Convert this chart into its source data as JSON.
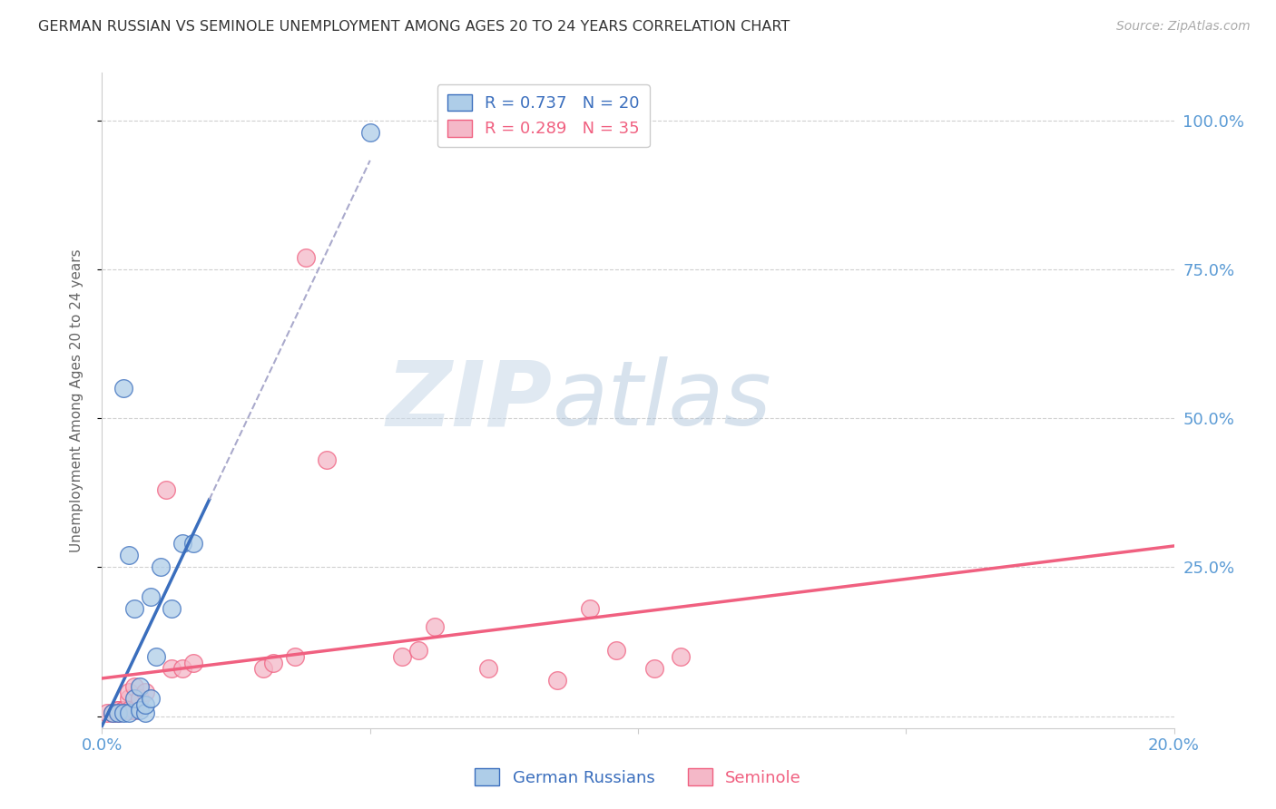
{
  "title": "GERMAN RUSSIAN VS SEMINOLE UNEMPLOYMENT AMONG AGES 20 TO 24 YEARS CORRELATION CHART",
  "source": "Source: ZipAtlas.com",
  "ylabel": "Unemployment Among Ages 20 to 24 years",
  "xlim": [
    0.0,
    0.2
  ],
  "ylim": [
    -0.02,
    1.08
  ],
  "x_ticks": [
    0.0,
    0.05,
    0.1,
    0.15,
    0.2
  ],
  "x_tick_labels": [
    "0.0%",
    "",
    "",
    "",
    "20.0%"
  ],
  "y_ticks": [
    0.0,
    0.25,
    0.5,
    0.75,
    1.0
  ],
  "y_tick_labels_right": [
    "",
    "25.0%",
    "50.0%",
    "75.0%",
    "100.0%"
  ],
  "legend_r1": "R = 0.737",
  "legend_n1": "N = 20",
  "legend_r2": "R = 0.289",
  "legend_n2": "N = 35",
  "color_blue": "#aecde8",
  "color_pink": "#f4b8c8",
  "color_blue_line": "#3a6ebd",
  "color_pink_line": "#f06080",
  "color_axis_blue": "#5b9bd5",
  "watermark_zip": "ZIP",
  "watermark_atlas": "atlas",
  "german_russian_x": [
    0.002,
    0.003,
    0.004,
    0.004,
    0.005,
    0.005,
    0.006,
    0.006,
    0.007,
    0.007,
    0.008,
    0.008,
    0.009,
    0.009,
    0.01,
    0.011,
    0.013,
    0.015,
    0.017,
    0.05
  ],
  "german_russian_y": [
    0.005,
    0.005,
    0.005,
    0.55,
    0.005,
    0.27,
    0.03,
    0.18,
    0.01,
    0.05,
    0.005,
    0.02,
    0.03,
    0.2,
    0.1,
    0.25,
    0.18,
    0.29,
    0.29,
    0.98
  ],
  "seminole_x": [
    0.001,
    0.002,
    0.003,
    0.003,
    0.003,
    0.004,
    0.004,
    0.004,
    0.005,
    0.005,
    0.005,
    0.005,
    0.006,
    0.006,
    0.007,
    0.007,
    0.008,
    0.012,
    0.013,
    0.015,
    0.017,
    0.03,
    0.032,
    0.036,
    0.038,
    0.042,
    0.056,
    0.059,
    0.062,
    0.072,
    0.085,
    0.091,
    0.096,
    0.103,
    0.108
  ],
  "seminole_y": [
    0.005,
    0.005,
    0.01,
    0.005,
    0.01,
    0.01,
    0.01,
    0.01,
    0.01,
    0.03,
    0.01,
    0.04,
    0.01,
    0.05,
    0.03,
    0.03,
    0.04,
    0.38,
    0.08,
    0.08,
    0.09,
    0.08,
    0.09,
    0.1,
    0.77,
    0.43,
    0.1,
    0.11,
    0.15,
    0.08,
    0.06,
    0.18,
    0.11,
    0.08,
    0.1
  ],
  "gr_line_x": [
    0.0,
    0.017
  ],
  "gr_line_solid_end": 0.02,
  "gr_line_dash_start": 0.02,
  "gr_line_dash_end": 0.05,
  "sem_line_x_start": 0.0,
  "sem_line_x_end": 0.2,
  "background_color": "#ffffff",
  "grid_color": "#d0d0d0"
}
